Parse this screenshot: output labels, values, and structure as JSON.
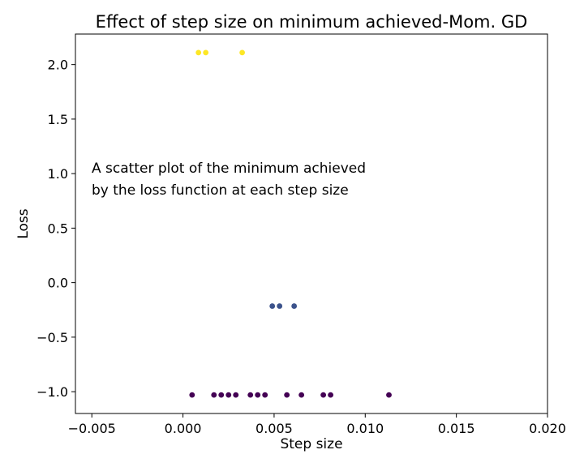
{
  "chart_data": {
    "type": "scatter",
    "title": "Effect of step size on minimum achieved-Mom. GD",
    "xlabel": "Step size",
    "ylabel": "Loss",
    "xlim": [
      -0.0059,
      0.02
    ],
    "ylim": [
      -1.2,
      2.28
    ],
    "xticks": [
      -0.005,
      0.0,
      0.005,
      0.01,
      0.015,
      0.02
    ],
    "xtick_labels": [
      "−0.005",
      "0.000",
      "0.005",
      "0.010",
      "0.015",
      "0.020"
    ],
    "yticks": [
      -1.0,
      -0.5,
      0.0,
      0.5,
      1.0,
      1.5,
      2.0
    ],
    "ytick_labels": [
      "−1.0",
      "−0.5",
      "0.0",
      "0.5",
      "1.0",
      "1.5",
      "2.0"
    ],
    "grid": false,
    "annotation": {
      "lines": [
        "A scatter plot of the minimum achieved",
        "by the loss function at each step size"
      ]
    },
    "points": [
      {
        "x": 0.00085,
        "y": 2.11,
        "color": "#fde725"
      },
      {
        "x": 0.00125,
        "y": 2.11,
        "color": "#fde725"
      },
      {
        "x": 0.00325,
        "y": 2.11,
        "color": "#fde725"
      },
      {
        "x": 0.0049,
        "y": -0.215,
        "color": "#3b528b"
      },
      {
        "x": 0.0053,
        "y": -0.215,
        "color": "#3b528b"
      },
      {
        "x": 0.0061,
        "y": -0.215,
        "color": "#3b528b"
      },
      {
        "x": 0.0005,
        "y": -1.03,
        "color": "#440154"
      },
      {
        "x": 0.0017,
        "y": -1.03,
        "color": "#440154"
      },
      {
        "x": 0.0021,
        "y": -1.03,
        "color": "#440154"
      },
      {
        "x": 0.0025,
        "y": -1.03,
        "color": "#440154"
      },
      {
        "x": 0.0029,
        "y": -1.03,
        "color": "#440154"
      },
      {
        "x": 0.0037,
        "y": -1.03,
        "color": "#440154"
      },
      {
        "x": 0.0041,
        "y": -1.03,
        "color": "#440154"
      },
      {
        "x": 0.0045,
        "y": -1.03,
        "color": "#440154"
      },
      {
        "x": 0.0057,
        "y": -1.03,
        "color": "#440154"
      },
      {
        "x": 0.0065,
        "y": -1.03,
        "color": "#440154"
      },
      {
        "x": 0.0077,
        "y": -1.03,
        "color": "#440154"
      },
      {
        "x": 0.0081,
        "y": -1.03,
        "color": "#440154"
      },
      {
        "x": 0.0113,
        "y": -1.03,
        "color": "#440154"
      }
    ]
  }
}
